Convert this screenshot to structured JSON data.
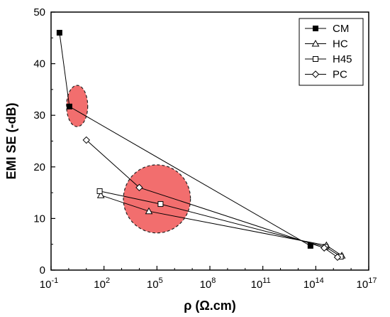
{
  "chart_data": {
    "type": "scatter",
    "title": "",
    "xlabel": "ρ (Ω.cm)",
    "ylabel": "EMI SE (-dB)",
    "x_scale": "log",
    "xlim_exponents": [
      -1,
      17
    ],
    "x_tick_exponents": [
      -1,
      2,
      5,
      8,
      11,
      14,
      17
    ],
    "x_tick_base": "10",
    "ylim": [
      0,
      50
    ],
    "y_ticks": [
      0,
      10,
      20,
      30,
      40,
      50
    ],
    "grid": false,
    "legend_position": "top-right",
    "series": [
      {
        "name": "CM",
        "marker": "filled-square",
        "points": [
          {
            "x": 0.3,
            "y": 46.0
          },
          {
            "x": 1.1,
            "y": 31.7
          },
          {
            "x": 50000000000000.0,
            "y": 4.7
          }
        ]
      },
      {
        "name": "HC",
        "marker": "open-triangle",
        "points": [
          {
            "x": 66,
            "y": 14.5
          },
          {
            "x": 35000.0,
            "y": 11.4
          },
          {
            "x": 400000000000000.0,
            "y": 4.8
          },
          {
            "x": 3000000000000000.0,
            "y": 2.8
          }
        ]
      },
      {
        "name": "H45",
        "marker": "open-square",
        "points": [
          {
            "x": 57,
            "y": 15.3
          },
          {
            "x": 160000.0,
            "y": 12.8
          },
          {
            "x": 360000000000000.0,
            "y": 4.5
          },
          {
            "x": 2600000000000000.0,
            "y": 2.6
          }
        ]
      },
      {
        "name": "PC",
        "marker": "open-diamond",
        "points": [
          {
            "x": 10,
            "y": 25.2
          },
          {
            "x": 10000.0,
            "y": 16.0
          },
          {
            "x": 300000000000000.0,
            "y": 4.3
          },
          {
            "x": 1700000000000000.0,
            "y": 2.5
          }
        ]
      }
    ],
    "highlights": [
      {
        "x": 3,
        "y": 31.8,
        "x_span_decades": 1.2,
        "y_span": 8.0,
        "color": "#F26E6E"
      },
      {
        "x": 100000.0,
        "y": 13.8,
        "x_span_decades": 3.8,
        "y_span": 13.2,
        "color": "#F26E6E"
      }
    ]
  }
}
